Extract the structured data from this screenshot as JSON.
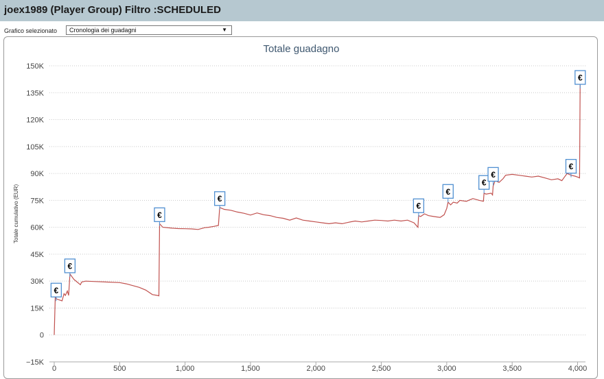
{
  "header": {
    "title": "joex1989 (Player Group) Filtro :SCHEDULED"
  },
  "selector": {
    "label": "Grafico selezionato",
    "value": "Cronologia dei guadagni",
    "arrow": "▼"
  },
  "chart_data": {
    "type": "line",
    "title": "Totale guadagno",
    "xlabel": "",
    "ylabel": "Totale cumulativo (EUR)",
    "xlim": [
      -30,
      4060
    ],
    "ylim": [
      -15000,
      150000
    ],
    "x_ticks": [
      0,
      500,
      1000,
      1500,
      2000,
      2500,
      3000,
      3500,
      4000
    ],
    "x_tick_labels": [
      "0",
      "500",
      "1,000",
      "1,500",
      "2,000",
      "2,500",
      "3,000",
      "3,500",
      "4,000"
    ],
    "y_ticks": [
      -15000,
      0,
      15000,
      30000,
      45000,
      60000,
      75000,
      90000,
      105000,
      120000,
      135000,
      150000
    ],
    "y_tick_labels": [
      "−15K",
      "0",
      "15K",
      "30K",
      "45K",
      "60K",
      "75K",
      "90K",
      "105K",
      "120K",
      "135K",
      "150K"
    ],
    "grid": true,
    "line_color": "#c0504d",
    "flag_color": "#4f8fd1",
    "flag_symbol": "€",
    "series": [
      {
        "name": "",
        "points": [
          [
            0,
            0
          ],
          [
            8,
            21000
          ],
          [
            20,
            20000
          ],
          [
            40,
            19500
          ],
          [
            60,
            19000
          ],
          [
            75,
            23000
          ],
          [
            85,
            22000
          ],
          [
            100,
            24500
          ],
          [
            110,
            22000
          ],
          [
            120,
            34000
          ],
          [
            150,
            31000
          ],
          [
            175,
            29500
          ],
          [
            200,
            28000
          ],
          [
            210,
            29500
          ],
          [
            240,
            30000
          ],
          [
            300,
            29800
          ],
          [
            400,
            29500
          ],
          [
            500,
            29200
          ],
          [
            550,
            28500
          ],
          [
            600,
            27500
          ],
          [
            650,
            26500
          ],
          [
            700,
            25000
          ],
          [
            750,
            22500
          ],
          [
            790,
            22000
          ],
          [
            800,
            21800
          ],
          [
            805,
            62000
          ],
          [
            830,
            60000
          ],
          [
            900,
            59500
          ],
          [
            950,
            59300
          ],
          [
            1000,
            59200
          ],
          [
            1050,
            59100
          ],
          [
            1100,
            58800
          ],
          [
            1150,
            59800
          ],
          [
            1180,
            60000
          ],
          [
            1220,
            60500
          ],
          [
            1255,
            61000
          ],
          [
            1265,
            71000
          ],
          [
            1300,
            70000
          ],
          [
            1350,
            69500
          ],
          [
            1400,
            68500
          ],
          [
            1450,
            67800
          ],
          [
            1500,
            66800
          ],
          [
            1550,
            68000
          ],
          [
            1600,
            67000
          ],
          [
            1650,
            66500
          ],
          [
            1700,
            65500
          ],
          [
            1750,
            65000
          ],
          [
            1800,
            64000
          ],
          [
            1850,
            65200
          ],
          [
            1900,
            64000
          ],
          [
            1950,
            63500
          ],
          [
            2000,
            63000
          ],
          [
            2050,
            62500
          ],
          [
            2100,
            62000
          ],
          [
            2150,
            62500
          ],
          [
            2200,
            62000
          ],
          [
            2250,
            62800
          ],
          [
            2300,
            63500
          ],
          [
            2350,
            63000
          ],
          [
            2400,
            63500
          ],
          [
            2450,
            64000
          ],
          [
            2500,
            63800
          ],
          [
            2550,
            63500
          ],
          [
            2600,
            64000
          ],
          [
            2650,
            63500
          ],
          [
            2700,
            64000
          ],
          [
            2750,
            62500
          ],
          [
            2780,
            60000
          ],
          [
            2785,
            66500
          ],
          [
            2800,
            66000
          ],
          [
            2830,
            67500
          ],
          [
            2860,
            66500
          ],
          [
            2900,
            66000
          ],
          [
            2950,
            65500
          ],
          [
            2980,
            67000
          ],
          [
            3000,
            70500
          ],
          [
            3010,
            74000
          ],
          [
            3030,
            72500
          ],
          [
            3050,
            74000
          ],
          [
            3080,
            73500
          ],
          [
            3100,
            75000
          ],
          [
            3150,
            74500
          ],
          [
            3200,
            76000
          ],
          [
            3250,
            75000
          ],
          [
            3280,
            74500
          ],
          [
            3285,
            79000
          ],
          [
            3300,
            78500
          ],
          [
            3340,
            79000
          ],
          [
            3350,
            78000
          ],
          [
            3355,
            83000
          ],
          [
            3370,
            86000
          ],
          [
            3400,
            85000
          ],
          [
            3430,
            87000
          ],
          [
            3450,
            89000
          ],
          [
            3500,
            89500
          ],
          [
            3550,
            89000
          ],
          [
            3600,
            88500
          ],
          [
            3650,
            88000
          ],
          [
            3700,
            88500
          ],
          [
            3750,
            87500
          ],
          [
            3800,
            86500
          ],
          [
            3850,
            87000
          ],
          [
            3880,
            86000
          ],
          [
            3900,
            88000
          ],
          [
            3920,
            90000
          ],
          [
            3950,
            89000
          ],
          [
            3980,
            88500
          ],
          [
            4000,
            88000
          ],
          [
            4015,
            87500
          ],
          [
            4020,
            143000
          ]
        ]
      }
    ],
    "flags": [
      {
        "x": 15,
        "label_y": 25000
      },
      {
        "x": 120,
        "label_y": 38500
      },
      {
        "x": 805,
        "label_y": 67000
      },
      {
        "x": 1265,
        "label_y": 76000
      },
      {
        "x": 2785,
        "label_y": 72000
      },
      {
        "x": 3010,
        "label_y": 80000
      },
      {
        "x": 3285,
        "label_y": 85000
      },
      {
        "x": 3355,
        "label_y": 89500
      },
      {
        "x": 3950,
        "label_y": 94000
      },
      {
        "x": 4020,
        "label_y": 143500
      }
    ]
  }
}
